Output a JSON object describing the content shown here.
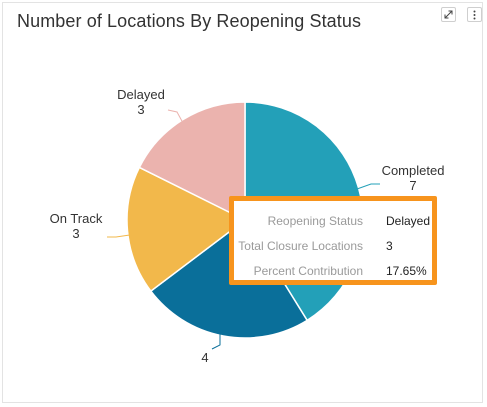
{
  "widget": {
    "title": "Number of Locations By Reopening Status",
    "expand_icon": "expand-icon",
    "menu_icon": "more-vertical-icon"
  },
  "chart_data": {
    "type": "pie",
    "title": "Number of Locations By Reopening Status",
    "slices": [
      {
        "name": "Completed",
        "value": 7,
        "color": "#23a0b8"
      },
      {
        "name": "",
        "value": 4,
        "color": "#0a6f9a"
      },
      {
        "name": "On Track",
        "value": 3,
        "color": "#f2b84b"
      },
      {
        "name": "Delayed",
        "value": 3,
        "color": "#ebb3ae"
      }
    ]
  },
  "tooltip": {
    "rows": [
      {
        "label": "Reopening Status",
        "value": "Delayed"
      },
      {
        "label": "Total Closure Locations",
        "value": "3"
      },
      {
        "label": "Percent Contribution",
        "value": "17.65%"
      }
    ]
  }
}
